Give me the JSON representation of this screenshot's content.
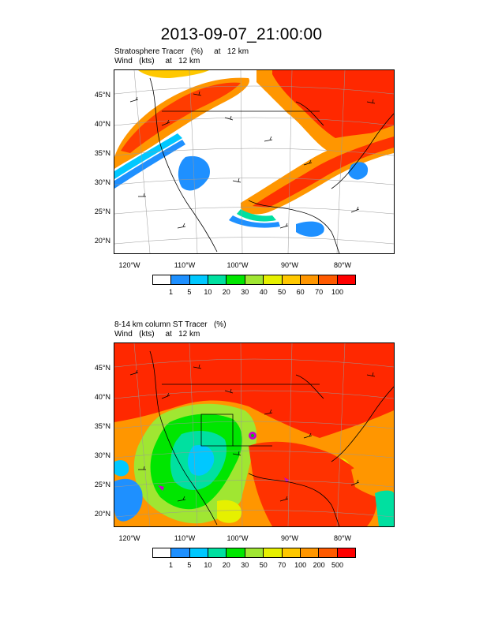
{
  "title": "2013-09-07_21:00:00",
  "panels": [
    {
      "label_line1": "Stratosphere Tracer   (%)     at   12 km",
      "label_line2": "Wind   (kts)     at   12 km",
      "lat_labels": [
        "45°N",
        "40°N",
        "35°N",
        "30°N",
        "25°N",
        "20°N"
      ],
      "lon_labels": [
        "120°W",
        "110°W",
        "100°W",
        "90°W",
        "80°W"
      ],
      "colorbar_levels": [
        "1",
        "5",
        "10",
        "20",
        "30",
        "40",
        "50",
        "60",
        "70",
        "100"
      ],
      "colorbar_colors": [
        "#ffffff",
        "#1e90ff",
        "#00c8ff",
        "#00e0a0",
        "#00e600",
        "#a0e632",
        "#e6f000",
        "#ffc800",
        "#ff9600",
        "#ff5a00",
        "#ff0000"
      ]
    },
    {
      "label_line1": "8-14 km column ST Tracer   (%)",
      "label_line2": "Wind   (kts)     at   12 km",
      "lat_labels": [
        "45°N",
        "40°N",
        "35°N",
        "30°N",
        "25°N",
        "20°N"
      ],
      "lon_labels": [
        "120°W",
        "110°W",
        "100°W",
        "90°W",
        "80°W"
      ],
      "colorbar_levels": [
        "1",
        "5",
        "10",
        "20",
        "30",
        "50",
        "70",
        "100",
        "200",
        "500"
      ],
      "colorbar_colors": [
        "#ffffff",
        "#1e90ff",
        "#00c8ff",
        "#00e0a0",
        "#00e600",
        "#a0e632",
        "#e6f000",
        "#ffc800",
        "#ff9600",
        "#ff5a00",
        "#ff0000"
      ]
    }
  ]
}
